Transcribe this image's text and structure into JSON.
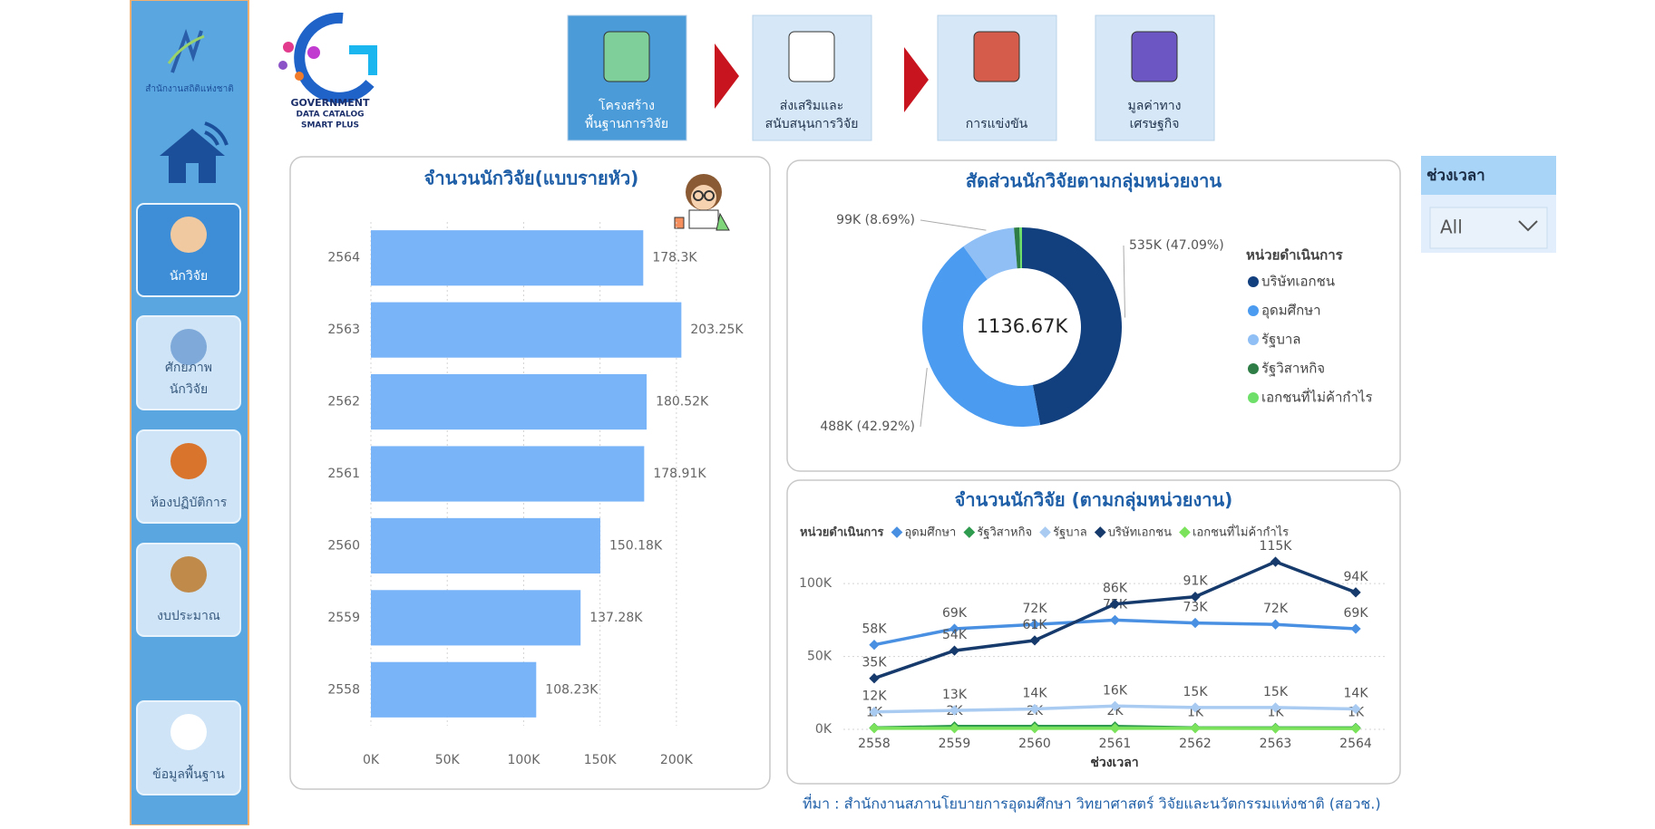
{
  "sidebar": {
    "org": "สำนักงานสถิติแห่งชาติ",
    "nav": [
      [
        "นักวิจัย"
      ],
      [
        "ศักยภาพ",
        "นักวิจัย"
      ],
      [
        "ห้องปฏิบัติการ"
      ],
      [
        "งบประมาณ"
      ],
      [
        "ข้อมูลพื้นฐาน"
      ]
    ]
  },
  "logo": [
    "GOVERNMENT",
    "DATA CATALOG",
    "SMART PLUS"
  ],
  "tabs": [
    [
      "โครงสร้าง",
      "พื้นฐานการวิจัย"
    ],
    [
      "ส่งเสริมและ",
      "สนับสนุนการวิจัย"
    ],
    [
      "การแข่งขัน"
    ],
    [
      "มูลค่าทาง",
      "เศรษฐกิจ"
    ]
  ],
  "filter": {
    "title": "ช่วงเวลา",
    "value": "All"
  },
  "source": "ที่มา : สำนักงานสภานโยบายการอุดมศึกษา วิทยาศาสตร์ วิจัยและนวัตกรรมแห่งชาติ (สอวช.)",
  "chart_data": [
    {
      "type": "hbar",
      "title": "จำนวนนักวิจัย(แบบรายหัว)",
      "categories": [
        "2564",
        "2563",
        "2562",
        "2561",
        "2560",
        "2559",
        "2558"
      ],
      "values": [
        178300,
        203250,
        180520,
        178910,
        150180,
        137280,
        108230
      ],
      "value_labels": [
        "178.3K",
        "203.25K",
        "180.52K",
        "178.91K",
        "150.18K",
        "137.28K",
        "108.23K"
      ],
      "color": "#7ab4f8",
      "xlim": [
        0,
        225000
      ],
      "xticks": [
        {
          "value": 0,
          "label": "0K"
        },
        {
          "value": 50000,
          "label": "50K"
        },
        {
          "value": 100000,
          "label": "100K"
        },
        {
          "value": 150000,
          "label": "150K"
        },
        {
          "value": 200000,
          "label": "200K"
        }
      ],
      "grid": true
    },
    {
      "type": "donut",
      "title": "สัดส่วนนักวิจัยตามกลุ่มหน่วยงาน",
      "categories": [
        "บริษัทเอกชน",
        "อุดมศึกษา",
        "รัฐบาล",
        "รัฐวิสาหกิจ",
        "เอกชนที่ไม่ค้ากำไร"
      ],
      "values": [
        535000,
        488000,
        99000,
        10000,
        4670
      ],
      "value_labels": [
        "535K (47.09%)",
        "488K (42.92%)",
        "99K (8.69%)",
        null,
        null
      ],
      "colors": [
        "#123f7d",
        "#4b9bf0",
        "#8fbff5",
        "#2e7d46",
        "#6ee06a"
      ],
      "center_label": "1136.67K",
      "legend_title": "หน่วยดำเนินการ",
      "legend": "right"
    },
    {
      "type": "line",
      "title": "จำนวนนักวิจัย (ตามกลุ่มหน่วยงาน)",
      "x_label": "ช่วงเวลา",
      "legend_title": "หน่วยดำเนินการ",
      "legend": "top",
      "categories": [
        "2558",
        "2559",
        "2560",
        "2561",
        "2562",
        "2563",
        "2564"
      ],
      "ylim": [
        0,
        120000
      ],
      "yticks": [
        {
          "value": 0,
          "label": "0K"
        },
        {
          "value": 50000,
          "label": "50K"
        },
        {
          "value": 100000,
          "label": "100K"
        }
      ],
      "grid": true,
      "series": [
        {
          "name": "อุดมศึกษา",
          "color": "#4a90e2",
          "values": [
            58000,
            69000,
            72000,
            75000,
            73000,
            72000,
            69000
          ],
          "value_labels": [
            "58K",
            "69K",
            "72K",
            "75K",
            "73K",
            "72K",
            "69K"
          ]
        },
        {
          "name": "รัฐวิสาหกิจ",
          "color": "#2e9b4e",
          "values": [
            1000,
            2000,
            2000,
            2000,
            1000,
            1000,
            1000
          ],
          "value_labels": [
            "1K",
            "2K",
            "2K",
            "2K",
            "1K",
            "1K",
            "1K"
          ]
        },
        {
          "name": "รัฐบาล",
          "color": "#a9cbf2",
          "values": [
            12000,
            13000,
            14000,
            16000,
            15000,
            15000,
            14000
          ],
          "value_labels": [
            "12K",
            "13K",
            "14K",
            "16K",
            "15K",
            "15K",
            "14K"
          ]
        },
        {
          "name": "บริษัทเอกชน",
          "color": "#163a6b",
          "values": [
            35000,
            54000,
            61000,
            86000,
            91000,
            115000,
            94000
          ],
          "value_labels": [
            "35K",
            "54K",
            "61K",
            "86K",
            "91K",
            "115K",
            "94K"
          ]
        },
        {
          "name": "เอกชนที่ไม่ค้ากำไร",
          "color": "#7be35b",
          "values": [
            700,
            700,
            700,
            700,
            700,
            600,
            570
          ]
        }
      ]
    }
  ]
}
